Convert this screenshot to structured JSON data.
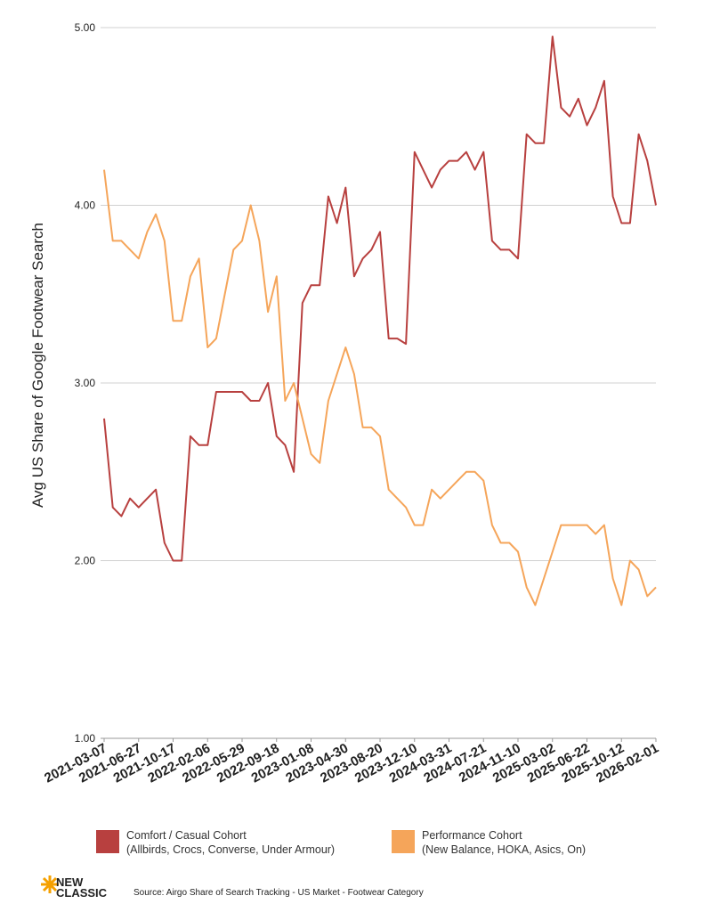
{
  "chart_data": {
    "type": "line",
    "y_label": "Avg US Share of Google Footwear Search",
    "source": "Source: Airgo Share of Search Tracking - US Market - Footwear Category",
    "logo": [
      "NEW",
      "CLASSIC"
    ],
    "x": [
      "2021-03-07",
      "2021-04-04",
      "2021-05-02",
      "2021-05-30",
      "2021-06-27",
      "2021-07-25",
      "2021-08-22",
      "2021-09-19",
      "2021-10-17",
      "2021-11-14",
      "2021-12-12",
      "2022-01-09",
      "2022-02-06",
      "2022-03-06",
      "2022-04-03",
      "2022-05-01",
      "2022-05-29",
      "2022-06-26",
      "2022-07-24",
      "2022-08-21",
      "2022-09-18",
      "2022-10-16",
      "2022-11-13",
      "2022-12-11",
      "2023-01-08",
      "2023-02-05",
      "2023-03-05",
      "2023-04-02",
      "2023-04-30",
      "2023-05-28",
      "2023-06-25",
      "2023-07-23",
      "2023-08-20",
      "2023-09-17",
      "2023-10-15",
      "2023-11-12",
      "2023-12-10",
      "2024-01-07",
      "2024-02-04",
      "2024-03-03",
      "2024-03-31",
      "2024-04-28",
      "2024-05-26",
      "2024-06-23",
      "2024-07-21",
      "2024-08-18",
      "2024-09-15",
      "2024-10-13",
      "2024-11-10",
      "2024-12-08",
      "2025-01-05",
      "2025-02-02",
      "2025-03-02",
      "2025-03-30",
      "2025-04-27",
      "2025-05-25",
      "2025-06-22",
      "2025-07-20",
      "2025-08-17",
      "2025-09-14",
      "2025-10-12",
      "2025-11-09",
      "2025-12-07",
      "2026-01-04",
      "2026-02-01"
    ],
    "series": [
      {
        "name": "Comfort / Casual Cohort",
        "detail": "(Allbirds, Crocs, Converse, Under Armour)",
        "color": "#b8403f",
        "values": [
          2.8,
          2.3,
          2.25,
          2.35,
          2.3,
          2.35,
          2.4,
          2.1,
          2.0,
          2.0,
          2.7,
          2.65,
          2.65,
          2.95,
          2.95,
          2.95,
          2.95,
          2.9,
          2.9,
          3.0,
          2.7,
          2.65,
          2.5,
          3.45,
          3.55,
          3.55,
          4.05,
          3.9,
          4.1,
          3.6,
          3.7,
          3.75,
          3.85,
          3.25,
          3.25,
          3.22,
          4.3,
          4.2,
          4.1,
          4.2,
          4.25,
          4.25,
          4.3,
          4.2,
          4.3,
          3.8,
          3.75,
          3.75,
          3.7,
          4.4,
          4.35,
          4.35,
          4.95,
          4.55,
          4.5,
          4.6,
          4.45,
          4.55,
          4.7,
          4.05,
          3.9,
          3.9,
          4.4,
          4.25,
          4.0
        ]
      },
      {
        "name": "Performance Cohort",
        "detail": "(New Balance, HOKA, Asics, On)",
        "color": "#f5a55a",
        "values": [
          4.2,
          3.8,
          3.8,
          3.75,
          3.7,
          3.85,
          3.95,
          3.8,
          3.35,
          3.35,
          3.6,
          3.7,
          3.2,
          3.25,
          3.5,
          3.75,
          3.8,
          4.0,
          3.8,
          3.4,
          3.6,
          2.9,
          3.0,
          2.8,
          2.6,
          2.55,
          2.9,
          3.05,
          3.2,
          3.05,
          2.75,
          2.75,
          2.7,
          2.4,
          2.35,
          2.3,
          2.2,
          2.2,
          2.4,
          2.35,
          2.4,
          2.45,
          2.5,
          2.5,
          2.45,
          2.2,
          2.1,
          2.1,
          2.05,
          1.85,
          1.75,
          1.9,
          2.05,
          2.2,
          2.2,
          2.2,
          2.2,
          2.15,
          2.2,
          1.9,
          1.75,
          2.0,
          1.95,
          1.8,
          1.85
        ]
      }
    ],
    "xlim": [
      "2021-03-07",
      "2026-02-01"
    ],
    "xticks": [
      "2021-03-07",
      "2021-06-27",
      "2021-10-17",
      "2022-02-06",
      "2022-05-29",
      "2022-09-18",
      "2023-01-08",
      "2023-04-30",
      "2023-08-20",
      "2023-12-10",
      "2024-03-31",
      "2024-07-21",
      "2024-11-10",
      "2025-03-02",
      "2025-06-22",
      "2025-10-12",
      "2026-02-01"
    ],
    "ylim": [
      1,
      5
    ],
    "yticks": [
      {
        "value": 1,
        "label": "1.00"
      },
      {
        "value": 2,
        "label": "2.00"
      },
      {
        "value": 3,
        "label": "3.00"
      },
      {
        "value": 4,
        "label": "4.00"
      },
      {
        "value": 5,
        "label": "5.00"
      }
    ],
    "grid": true
  }
}
